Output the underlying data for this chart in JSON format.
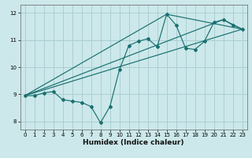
{
  "title": "",
  "xlabel": "Humidex (Indice chaleur)",
  "ylabel": "",
  "bg_color": "#cce8ea",
  "grid_color": "#aacfd4",
  "line_color": "#1a7070",
  "marker_color": "#1a7070",
  "xlim": [
    -0.5,
    23.5
  ],
  "ylim": [
    7.7,
    12.3
  ],
  "xticks": [
    0,
    1,
    2,
    3,
    4,
    5,
    6,
    7,
    8,
    9,
    10,
    11,
    12,
    13,
    14,
    15,
    16,
    17,
    18,
    19,
    20,
    21,
    22,
    23
  ],
  "yticks": [
    8,
    9,
    10,
    11,
    12
  ],
  "main_x": [
    0,
    1,
    2,
    3,
    4,
    5,
    6,
    7,
    8,
    9,
    10,
    11,
    12,
    13,
    14,
    15,
    16,
    17,
    18,
    19,
    20,
    21,
    22,
    23
  ],
  "main_y": [
    8.95,
    8.95,
    9.05,
    9.1,
    8.8,
    8.75,
    8.7,
    8.55,
    7.95,
    8.55,
    9.9,
    10.8,
    10.95,
    11.05,
    10.75,
    11.95,
    11.55,
    10.7,
    10.65,
    10.95,
    11.65,
    11.75,
    11.55,
    11.4
  ],
  "line1_x": [
    0,
    15,
    23
  ],
  "line1_y": [
    8.95,
    11.95,
    11.4
  ],
  "line2_x": [
    0,
    21,
    23
  ],
  "line2_y": [
    8.95,
    11.75,
    11.4
  ],
  "line3_x": [
    0,
    23
  ],
  "line3_y": [
    8.95,
    11.4
  ]
}
